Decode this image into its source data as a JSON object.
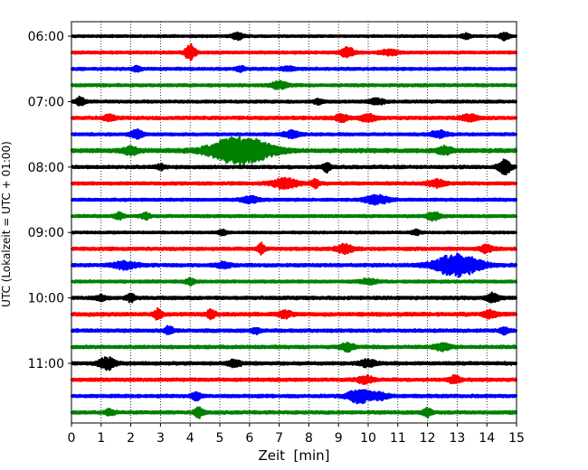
{
  "chart_data": {
    "type": "line",
    "title": "",
    "xlabel": "Zeit  [min]",
    "ylabel": "UTC (Lokalzeit = UTC + 01:00)",
    "xlim": [
      0,
      15
    ],
    "x_ticks": [
      0,
      1,
      2,
      3,
      4,
      5,
      6,
      7,
      8,
      9,
      10,
      11,
      12,
      13,
      14,
      15
    ],
    "x_tick_labels": [
      "0",
      "1",
      "2",
      "3",
      "4",
      "5",
      "6",
      "7",
      "8",
      "9",
      "10",
      "11",
      "12",
      "13",
      "14",
      "15"
    ],
    "y_tick_labels": [
      "06:00",
      "07:00",
      "08:00",
      "09:00",
      "10:00",
      "11:00"
    ],
    "y_tick_rows": [
      0,
      4,
      8,
      12,
      16,
      20
    ],
    "grid": "vertical dotted",
    "color_cycle": [
      "#000000",
      "#ff0000",
      "#0000ff",
      "#008000"
    ],
    "traces": [
      {
        "start": "06:00",
        "color": "#000000",
        "amp": 0.1,
        "events": [
          [
            5.6,
            0.35,
            0.15
          ],
          [
            13.3,
            0.3,
            0.1
          ],
          [
            14.6,
            0.5,
            0.1
          ]
        ]
      },
      {
        "start": "06:15",
        "color": "#ff0000",
        "amp": 0.12,
        "events": [
          [
            4.0,
            0.9,
            0.12
          ],
          [
            9.3,
            0.6,
            0.15
          ],
          [
            10.7,
            0.3,
            0.2
          ]
        ]
      },
      {
        "start": "06:30",
        "color": "#0000ff",
        "amp": 0.12,
        "events": [
          [
            2.2,
            0.3,
            0.1
          ],
          [
            5.7,
            0.3,
            0.1
          ],
          [
            7.3,
            0.25,
            0.15
          ]
        ]
      },
      {
        "start": "06:45",
        "color": "#008000",
        "amp": 0.12,
        "events": [
          [
            7.0,
            0.4,
            0.2
          ]
        ]
      },
      {
        "start": "07:00",
        "color": "#000000",
        "amp": 0.12,
        "events": [
          [
            0.3,
            0.5,
            0.1
          ],
          [
            8.3,
            0.3,
            0.1
          ],
          [
            10.3,
            0.3,
            0.2
          ]
        ]
      },
      {
        "start": "07:15",
        "color": "#ff0000",
        "amp": 0.14,
        "events": [
          [
            1.3,
            0.4,
            0.15
          ],
          [
            9.1,
            0.4,
            0.15
          ],
          [
            10.0,
            0.4,
            0.2
          ],
          [
            13.4,
            0.4,
            0.2
          ]
        ]
      },
      {
        "start": "07:30",
        "color": "#0000ff",
        "amp": 0.12,
        "events": [
          [
            2.2,
            0.5,
            0.15
          ],
          [
            7.4,
            0.4,
            0.2
          ],
          [
            12.4,
            0.4,
            0.2
          ]
        ]
      },
      {
        "start": "07:45",
        "color": "#008000",
        "amp": 0.18,
        "events": [
          [
            5.7,
            1.7,
            0.7
          ],
          [
            2.0,
            0.4,
            0.2
          ],
          [
            12.6,
            0.4,
            0.2
          ]
        ]
      },
      {
        "start": "08:00",
        "color": "#000000",
        "amp": 0.14,
        "events": [
          [
            8.6,
            0.5,
            0.1
          ],
          [
            14.6,
            0.8,
            0.15
          ],
          [
            3.0,
            0.3,
            0.1
          ]
        ]
      },
      {
        "start": "08:15",
        "color": "#ff0000",
        "amp": 0.14,
        "events": [
          [
            7.2,
            0.6,
            0.3
          ],
          [
            8.2,
            0.5,
            0.1
          ],
          [
            12.3,
            0.4,
            0.2
          ]
        ]
      },
      {
        "start": "08:30",
        "color": "#0000ff",
        "amp": 0.12,
        "events": [
          [
            6.0,
            0.4,
            0.2
          ],
          [
            10.3,
            0.5,
            0.3
          ]
        ]
      },
      {
        "start": "08:45",
        "color": "#008000",
        "amp": 0.12,
        "events": [
          [
            1.6,
            0.4,
            0.1
          ],
          [
            2.5,
            0.4,
            0.1
          ],
          [
            12.2,
            0.5,
            0.15
          ]
        ]
      },
      {
        "start": "09:00",
        "color": "#000000",
        "amp": 0.1,
        "events": [
          [
            5.1,
            0.3,
            0.1
          ],
          [
            11.6,
            0.3,
            0.1
          ]
        ]
      },
      {
        "start": "09:15",
        "color": "#ff0000",
        "amp": 0.14,
        "events": [
          [
            6.4,
            0.6,
            0.08
          ],
          [
            9.2,
            0.5,
            0.2
          ],
          [
            14.0,
            0.4,
            0.15
          ]
        ]
      },
      {
        "start": "09:30",
        "color": "#0000ff",
        "amp": 0.14,
        "events": [
          [
            13.0,
            1.3,
            0.55
          ],
          [
            1.8,
            0.4,
            0.3
          ],
          [
            5.1,
            0.3,
            0.2
          ]
        ]
      },
      {
        "start": "09:45",
        "color": "#008000",
        "amp": 0.12,
        "events": [
          [
            4.0,
            0.4,
            0.1
          ],
          [
            10.0,
            0.3,
            0.2
          ]
        ]
      },
      {
        "start": "10:00",
        "color": "#000000",
        "amp": 0.14,
        "events": [
          [
            2.0,
            0.4,
            0.1
          ],
          [
            14.2,
            0.5,
            0.15
          ],
          [
            1.0,
            0.3,
            0.1
          ]
        ]
      },
      {
        "start": "10:15",
        "color": "#ff0000",
        "amp": 0.16,
        "events": [
          [
            2.9,
            0.6,
            0.1
          ],
          [
            4.7,
            0.5,
            0.1
          ],
          [
            7.2,
            0.4,
            0.15
          ],
          [
            14.1,
            0.4,
            0.15
          ]
        ]
      },
      {
        "start": "10:30",
        "color": "#0000ff",
        "amp": 0.14,
        "events": [
          [
            3.3,
            0.5,
            0.1
          ],
          [
            6.2,
            0.3,
            0.1
          ],
          [
            14.6,
            0.4,
            0.1
          ]
        ]
      },
      {
        "start": "10:45",
        "color": "#008000",
        "amp": 0.14,
        "events": [
          [
            9.3,
            0.5,
            0.15
          ],
          [
            12.5,
            0.4,
            0.2
          ]
        ]
      },
      {
        "start": "11:00",
        "color": "#000000",
        "amp": 0.14,
        "events": [
          [
            1.2,
            0.7,
            0.2
          ],
          [
            5.5,
            0.4,
            0.15
          ],
          [
            10.0,
            0.4,
            0.2
          ]
        ]
      },
      {
        "start": "11:15",
        "color": "#ff0000",
        "amp": 0.14,
        "events": [
          [
            9.9,
            0.4,
            0.2
          ],
          [
            12.9,
            0.4,
            0.15
          ]
        ]
      },
      {
        "start": "11:30",
        "color": "#0000ff",
        "amp": 0.14,
        "events": [
          [
            9.7,
            1.0,
            0.25
          ],
          [
            4.2,
            0.5,
            0.1
          ],
          [
            10.4,
            0.4,
            0.2
          ]
        ]
      },
      {
        "start": "11:45",
        "color": "#008000",
        "amp": 0.14,
        "events": [
          [
            1.3,
            0.4,
            0.1
          ],
          [
            4.3,
            0.6,
            0.1
          ],
          [
            12.0,
            0.5,
            0.1
          ]
        ]
      }
    ]
  }
}
